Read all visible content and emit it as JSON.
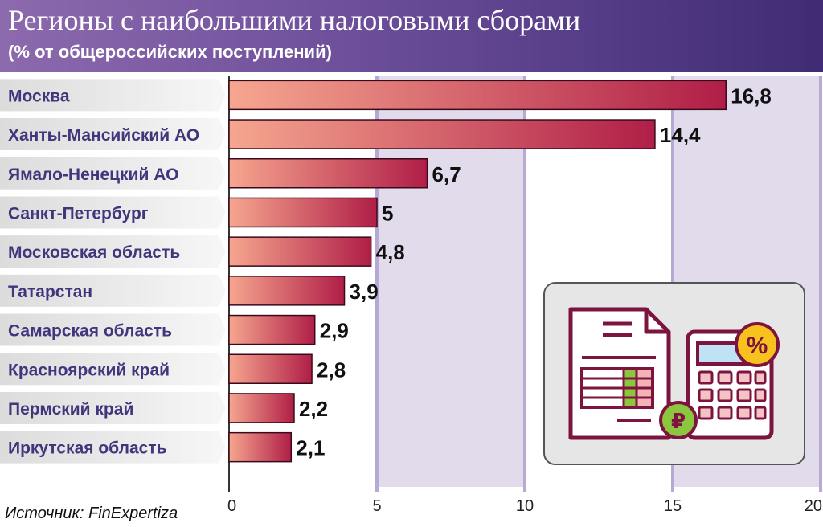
{
  "header": {
    "title": "Регионы с наибольшими налоговыми сборами",
    "subtitle": "(% от общероссийских поступлений)"
  },
  "source": "Источник: FinExpertiza",
  "colors": {
    "bar_start": "#f6a68f",
    "bar_end": "#b01e47",
    "label_color": "#41357c",
    "plot_band": "#e2dbec"
  },
  "illustration": {
    "percent_symbol": "%",
    "ruble_symbol": "₽"
  },
  "chart_data": {
    "type": "bar",
    "orientation": "horizontal",
    "title": "Регионы с наибольшими налоговыми сборами",
    "subtitle": "(% от общероссийских поступлений)",
    "categories": [
      "Москва",
      "Ханты-Мансийский АО",
      "Ямало-Ненецкий АО",
      "Санкт-Петербург",
      "Московская область",
      "Татарстан",
      "Самарская область",
      "Красноярский край",
      "Пермский край",
      "Иркутская область"
    ],
    "values": [
      16.8,
      14.4,
      6.7,
      5,
      4.8,
      3.9,
      2.9,
      2.8,
      2.2,
      2.1
    ],
    "value_labels": [
      "16,8",
      "14,4",
      "6,7",
      "5",
      "4,8",
      "3,9",
      "2,9",
      "2,8",
      "2,2",
      "2,1"
    ],
    "xlim": [
      0,
      20
    ],
    "xticks": [
      0,
      5,
      10,
      15,
      20
    ],
    "xtick_labels": [
      "0",
      "5",
      "10",
      "15",
      "20"
    ],
    "xlabel": "",
    "ylabel": "",
    "grid": true
  }
}
